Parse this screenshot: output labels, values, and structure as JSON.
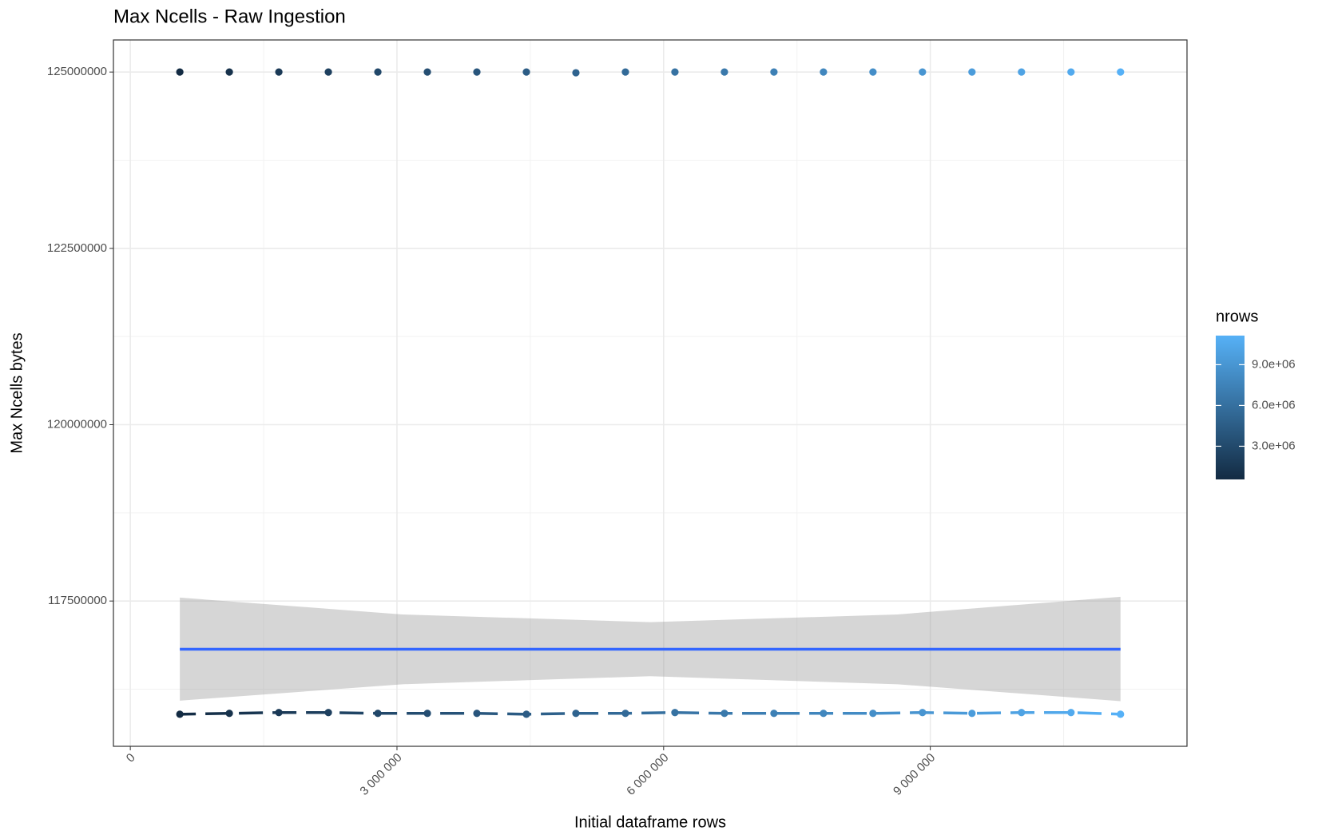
{
  "chart_data": {
    "type": "scatter",
    "title": "Max Ncells - Raw Ingestion",
    "x_label": "Initial dataframe rows",
    "y_label": "Max Ncells bytes",
    "x": [
      557000,
      1114000,
      1671000,
      2228000,
      2785000,
      3342000,
      3899000,
      4456000,
      5013000,
      5570000,
      6127000,
      6684000,
      7241000,
      7798000,
      8355000,
      8912000,
      9469000,
      10026000,
      10583000,
      11140000
    ],
    "series": [
      {
        "values": [
          125000000,
          125000000,
          125000000,
          125000000,
          125000000,
          125000000,
          125000000,
          125000000,
          124990000,
          125000000,
          125000000,
          125000000,
          125000000,
          125000000,
          125000000,
          125000000,
          125000000,
          125000000,
          125000000,
          125000000
        ]
      },
      {
        "values": [
          115895000,
          115907000,
          115919000,
          115919000,
          115907000,
          115907000,
          115907000,
          115895000,
          115907000,
          115907000,
          115919000,
          115907000,
          115907000,
          115907000,
          115907000,
          115919000,
          115907000,
          115919000,
          115919000,
          115895000
        ],
        "linestyle": "dashed"
      }
    ],
    "smooth": {
      "color": "#3366FF",
      "ribbon_color": "#999999",
      "x": [
        557000,
        3062000,
        5848000,
        8633000,
        11140000
      ],
      "y": [
        116817000,
        116817000,
        116817000,
        116817000,
        116817000
      ],
      "lower": [
        116087000,
        116320000,
        116434000,
        116320000,
        116080000
      ],
      "upper": [
        117548000,
        117310000,
        117200000,
        117310000,
        117560000
      ]
    },
    "xlim": [
      -190000,
      11888000
    ],
    "xticks": [
      0,
      {
        "value": 3000000,
        "label": "3 000 000"
      },
      {
        "value": 6000000,
        "label": "6 000 000"
      },
      {
        "value": 9000000,
        "label": "9 000 000"
      }
    ],
    "ylim": [
      115440000,
      125455000
    ],
    "yticks": [
      117500000,
      120000000,
      122500000,
      125000000
    ],
    "grid": true,
    "color_scale": {
      "name": "nrows",
      "low": "#132B43",
      "high": "#56B1F7",
      "limits": [
        557000,
        11140000
      ],
      "ticks": [
        {
          "value": 3000000,
          "label": "3.0e+06"
        },
        {
          "value": 6000000,
          "label": "6.0e+06"
        },
        {
          "value": 9000000,
          "label": "9.0e+06"
        }
      ]
    }
  }
}
